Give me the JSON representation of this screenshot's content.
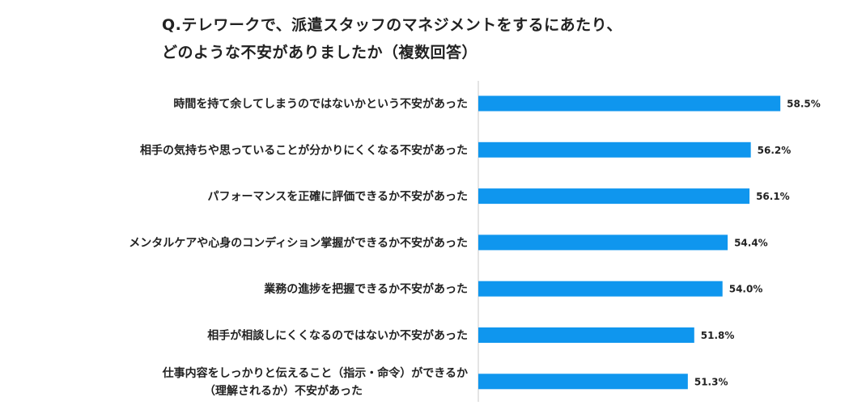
{
  "chart_data": {
    "type": "bar",
    "orientation": "horizontal",
    "title_lines": [
      "Q.テレワークで、派遣スタッフのマネジメントをするにあたり、",
      "どのような不安がありましたか（複数回答）"
    ],
    "categories": [
      [
        "時間を持て余してしまうのではないかという不安があった"
      ],
      [
        "相手の気持ちや思っていることが分かりにくくなる不安があった"
      ],
      [
        "パフォーマンスを正確に評価できるか不安があった"
      ],
      [
        "メンタルケアや心身のコンディション掌握ができるか不安があった"
      ],
      [
        "業務の進捗を把握できるか不安があった"
      ],
      [
        "相手が相談しにくくなるのではないか不安があった"
      ],
      [
        "仕事内容をしっかりと伝えること（指示・命令）ができるか",
        "（理解されるか）不安があった"
      ]
    ],
    "values": [
      58.5,
      56.2,
      56.1,
      54.4,
      54.0,
      51.8,
      51.3
    ],
    "value_labels": [
      "58.5%",
      "56.2%",
      "56.1%",
      "54.4%",
      "54.0%",
      "51.8%",
      "51.3%"
    ],
    "xlim": [
      35,
      60
    ],
    "grid": false,
    "bar_color": "#0f96ee",
    "axis_color": "#c8c8c8"
  }
}
